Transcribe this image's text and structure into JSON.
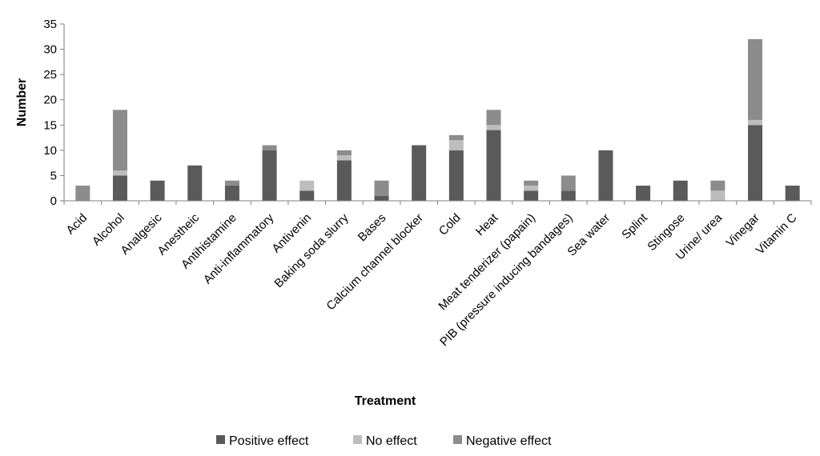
{
  "chart_data": {
    "type": "bar",
    "stacked": true,
    "title": "",
    "xlabel": "Treatment",
    "ylabel": "Number",
    "ylim": [
      0,
      35
    ],
    "yticks": [
      0,
      5,
      10,
      15,
      20,
      25,
      30,
      35
    ],
    "legend_position": "bottom",
    "categories": [
      "Acid",
      "Alcohol",
      "Analgesic",
      "Anestheic",
      "Antihistamine",
      "Anti-inflammatory",
      "Antivenin",
      "Baking soda slurry",
      "Bases",
      "Calcium channel blocker",
      "Cold",
      "Heat",
      "Meat tenderizer (papain)",
      "PIB (pressure inducing bandages)",
      "Sea water",
      "Splint",
      "Stingose",
      "Urine/ urea",
      "Vinegar",
      "Vitamin C"
    ],
    "series": [
      {
        "name": "Positive effect",
        "color": "#5a5a5a",
        "values": [
          0,
          5,
          4,
          7,
          3,
          10,
          2,
          8,
          1,
          11,
          10,
          14,
          2,
          2,
          10,
          3,
          4,
          0,
          15,
          3
        ]
      },
      {
        "name": "No effect",
        "color": "#bdbdbd",
        "values": [
          0,
          1,
          0,
          0,
          0,
          0,
          2,
          1,
          0,
          0,
          2,
          1,
          1,
          0,
          0,
          0,
          0,
          2,
          1,
          0
        ]
      },
      {
        "name": "Negative effect",
        "color": "#8c8c8c",
        "values": [
          3,
          12,
          0,
          0,
          1,
          1,
          0,
          1,
          3,
          0,
          1,
          3,
          1,
          3,
          0,
          0,
          0,
          2,
          16,
          0
        ]
      }
    ]
  }
}
